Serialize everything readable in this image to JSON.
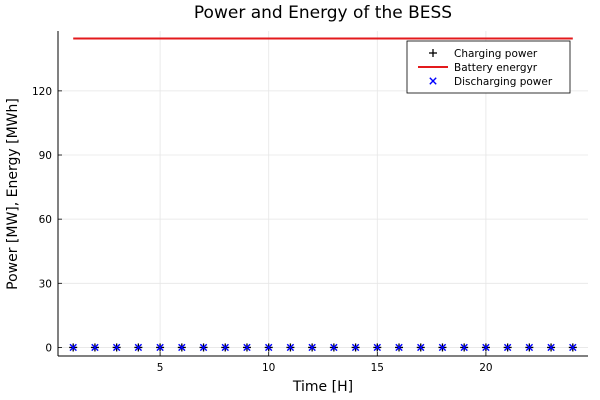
{
  "chart_data": {
    "type": "line",
    "title": "Power and Energy of the BESS",
    "xlabel": "Time [H]",
    "ylabel": "Power [MW], Energy [MWh]",
    "xlim": [
      0.3,
      24.7
    ],
    "ylim": [
      -4,
      148
    ],
    "xticks": [
      5,
      10,
      15,
      20
    ],
    "yticks": [
      0,
      30,
      60,
      90,
      120
    ],
    "grid": true,
    "legend_position": "top-right",
    "x": [
      1,
      2,
      3,
      4,
      5,
      6,
      7,
      8,
      9,
      10,
      11,
      12,
      13,
      14,
      15,
      16,
      17,
      18,
      19,
      20,
      21,
      22,
      23,
      24
    ],
    "series": [
      {
        "name": "Charging power",
        "kind": "scatter",
        "marker": "plus",
        "color": "#000000",
        "values": [
          0,
          0,
          0,
          0,
          0,
          0,
          0,
          0,
          0,
          0,
          0,
          0,
          0,
          0,
          0,
          0,
          0,
          0,
          0,
          0,
          0,
          0,
          0,
          0
        ]
      },
      {
        "name": "Battery energyr",
        "kind": "line",
        "color": "#e31a1c",
        "values": [
          144.5,
          144.5,
          144.5,
          144.5,
          144.5,
          144.5,
          144.5,
          144.5,
          144.5,
          144.5,
          144.5,
          144.5,
          144.5,
          144.5,
          144.5,
          144.5,
          144.5,
          144.5,
          144.5,
          144.5,
          144.5,
          144.5,
          144.5,
          144.5
        ]
      },
      {
        "name": "Discharging power",
        "kind": "scatter",
        "marker": "cross",
        "color": "#0000ff",
        "values": [
          0,
          0,
          0,
          0,
          0,
          0,
          0,
          0,
          0,
          0,
          0,
          0,
          0,
          0,
          0,
          0,
          0,
          0,
          0,
          0,
          0,
          0,
          0,
          0
        ]
      }
    ]
  }
}
